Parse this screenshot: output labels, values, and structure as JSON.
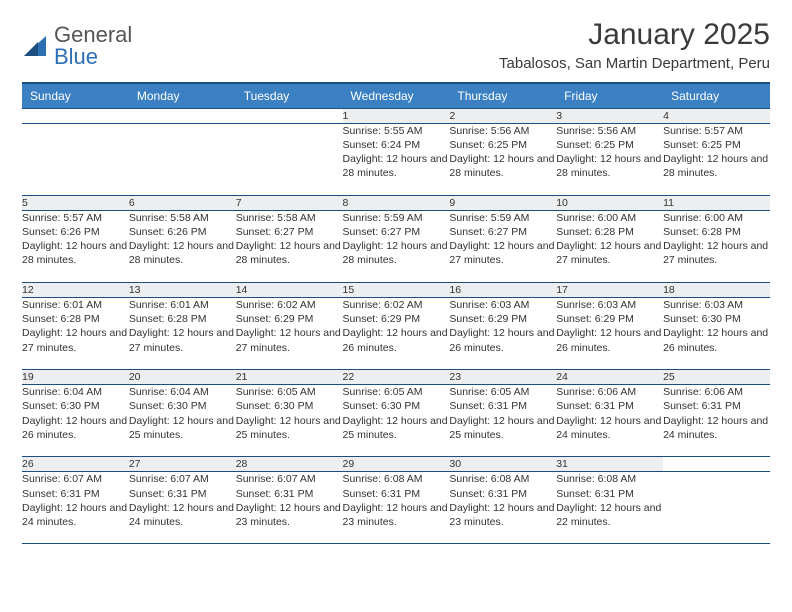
{
  "colors": {
    "header_bg": "#3a80c3",
    "header_border": "#1c4f80",
    "row_border": "#1c4f80",
    "daynum_bg": "#eceeef",
    "text": "#333333",
    "logo_gray": "#555555",
    "logo_blue": "#2c6fb5",
    "page_bg": "#ffffff"
  },
  "logo": {
    "line1": "General",
    "line2": "Blue"
  },
  "title": "January 2025",
  "location": "Tabalosos, San Martin Department, Peru",
  "weekdays": [
    "Sunday",
    "Monday",
    "Tuesday",
    "Wednesday",
    "Thursday",
    "Friday",
    "Saturday"
  ],
  "weeks": [
    [
      null,
      null,
      null,
      {
        "day": "1",
        "sunrise": "Sunrise: 5:55 AM",
        "sunset": "Sunset: 6:24 PM",
        "daylight": "Daylight: 12 hours and 28 minutes."
      },
      {
        "day": "2",
        "sunrise": "Sunrise: 5:56 AM",
        "sunset": "Sunset: 6:25 PM",
        "daylight": "Daylight: 12 hours and 28 minutes."
      },
      {
        "day": "3",
        "sunrise": "Sunrise: 5:56 AM",
        "sunset": "Sunset: 6:25 PM",
        "daylight": "Daylight: 12 hours and 28 minutes."
      },
      {
        "day": "4",
        "sunrise": "Sunrise: 5:57 AM",
        "sunset": "Sunset: 6:25 PM",
        "daylight": "Daylight: 12 hours and 28 minutes."
      }
    ],
    [
      {
        "day": "5",
        "sunrise": "Sunrise: 5:57 AM",
        "sunset": "Sunset: 6:26 PM",
        "daylight": "Daylight: 12 hours and 28 minutes."
      },
      {
        "day": "6",
        "sunrise": "Sunrise: 5:58 AM",
        "sunset": "Sunset: 6:26 PM",
        "daylight": "Daylight: 12 hours and 28 minutes."
      },
      {
        "day": "7",
        "sunrise": "Sunrise: 5:58 AM",
        "sunset": "Sunset: 6:27 PM",
        "daylight": "Daylight: 12 hours and 28 minutes."
      },
      {
        "day": "8",
        "sunrise": "Sunrise: 5:59 AM",
        "sunset": "Sunset: 6:27 PM",
        "daylight": "Daylight: 12 hours and 28 minutes."
      },
      {
        "day": "9",
        "sunrise": "Sunrise: 5:59 AM",
        "sunset": "Sunset: 6:27 PM",
        "daylight": "Daylight: 12 hours and 27 minutes."
      },
      {
        "day": "10",
        "sunrise": "Sunrise: 6:00 AM",
        "sunset": "Sunset: 6:28 PM",
        "daylight": "Daylight: 12 hours and 27 minutes."
      },
      {
        "day": "11",
        "sunrise": "Sunrise: 6:00 AM",
        "sunset": "Sunset: 6:28 PM",
        "daylight": "Daylight: 12 hours and 27 minutes."
      }
    ],
    [
      {
        "day": "12",
        "sunrise": "Sunrise: 6:01 AM",
        "sunset": "Sunset: 6:28 PM",
        "daylight": "Daylight: 12 hours and 27 minutes."
      },
      {
        "day": "13",
        "sunrise": "Sunrise: 6:01 AM",
        "sunset": "Sunset: 6:28 PM",
        "daylight": "Daylight: 12 hours and 27 minutes."
      },
      {
        "day": "14",
        "sunrise": "Sunrise: 6:02 AM",
        "sunset": "Sunset: 6:29 PM",
        "daylight": "Daylight: 12 hours and 27 minutes."
      },
      {
        "day": "15",
        "sunrise": "Sunrise: 6:02 AM",
        "sunset": "Sunset: 6:29 PM",
        "daylight": "Daylight: 12 hours and 26 minutes."
      },
      {
        "day": "16",
        "sunrise": "Sunrise: 6:03 AM",
        "sunset": "Sunset: 6:29 PM",
        "daylight": "Daylight: 12 hours and 26 minutes."
      },
      {
        "day": "17",
        "sunrise": "Sunrise: 6:03 AM",
        "sunset": "Sunset: 6:29 PM",
        "daylight": "Daylight: 12 hours and 26 minutes."
      },
      {
        "day": "18",
        "sunrise": "Sunrise: 6:03 AM",
        "sunset": "Sunset: 6:30 PM",
        "daylight": "Daylight: 12 hours and 26 minutes."
      }
    ],
    [
      {
        "day": "19",
        "sunrise": "Sunrise: 6:04 AM",
        "sunset": "Sunset: 6:30 PM",
        "daylight": "Daylight: 12 hours and 26 minutes."
      },
      {
        "day": "20",
        "sunrise": "Sunrise: 6:04 AM",
        "sunset": "Sunset: 6:30 PM",
        "daylight": "Daylight: 12 hours and 25 minutes."
      },
      {
        "day": "21",
        "sunrise": "Sunrise: 6:05 AM",
        "sunset": "Sunset: 6:30 PM",
        "daylight": "Daylight: 12 hours and 25 minutes."
      },
      {
        "day": "22",
        "sunrise": "Sunrise: 6:05 AM",
        "sunset": "Sunset: 6:30 PM",
        "daylight": "Daylight: 12 hours and 25 minutes."
      },
      {
        "day": "23",
        "sunrise": "Sunrise: 6:05 AM",
        "sunset": "Sunset: 6:31 PM",
        "daylight": "Daylight: 12 hours and 25 minutes."
      },
      {
        "day": "24",
        "sunrise": "Sunrise: 6:06 AM",
        "sunset": "Sunset: 6:31 PM",
        "daylight": "Daylight: 12 hours and 24 minutes."
      },
      {
        "day": "25",
        "sunrise": "Sunrise: 6:06 AM",
        "sunset": "Sunset: 6:31 PM",
        "daylight": "Daylight: 12 hours and 24 minutes."
      }
    ],
    [
      {
        "day": "26",
        "sunrise": "Sunrise: 6:07 AM",
        "sunset": "Sunset: 6:31 PM",
        "daylight": "Daylight: 12 hours and 24 minutes."
      },
      {
        "day": "27",
        "sunrise": "Sunrise: 6:07 AM",
        "sunset": "Sunset: 6:31 PM",
        "daylight": "Daylight: 12 hours and 24 minutes."
      },
      {
        "day": "28",
        "sunrise": "Sunrise: 6:07 AM",
        "sunset": "Sunset: 6:31 PM",
        "daylight": "Daylight: 12 hours and 23 minutes."
      },
      {
        "day": "29",
        "sunrise": "Sunrise: 6:08 AM",
        "sunset": "Sunset: 6:31 PM",
        "daylight": "Daylight: 12 hours and 23 minutes."
      },
      {
        "day": "30",
        "sunrise": "Sunrise: 6:08 AM",
        "sunset": "Sunset: 6:31 PM",
        "daylight": "Daylight: 12 hours and 23 minutes."
      },
      {
        "day": "31",
        "sunrise": "Sunrise: 6:08 AM",
        "sunset": "Sunset: 6:31 PM",
        "daylight": "Daylight: 12 hours and 22 minutes."
      },
      null
    ]
  ]
}
